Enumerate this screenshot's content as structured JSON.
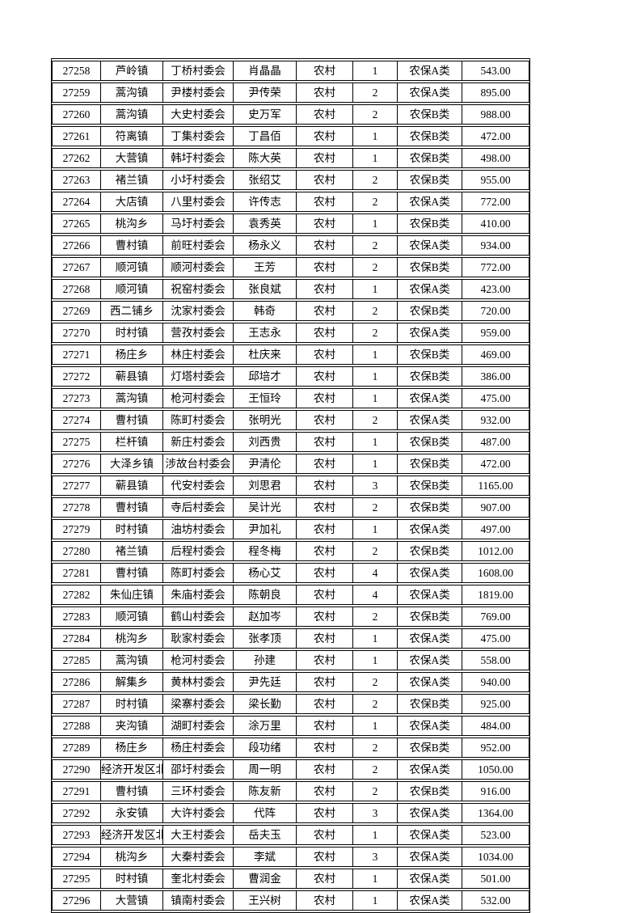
{
  "page": {
    "background_color": "#ffffff",
    "text_color": "#000000",
    "border_color": "#000000"
  },
  "table": {
    "rows": [
      [
        "27258",
        "芦岭镇",
        "丁桥村委会",
        "肖晶晶",
        "农村",
        "1",
        "农保A类",
        "543.00"
      ],
      [
        "27259",
        "蒿沟镇",
        "尹楼村委会",
        "尹传荣",
        "农村",
        "2",
        "农保A类",
        "895.00"
      ],
      [
        "27260",
        "蒿沟镇",
        "大史村委会",
        "史万军",
        "农村",
        "2",
        "农保B类",
        "988.00"
      ],
      [
        "27261",
        "符离镇",
        "丁集村委会",
        "丁昌佰",
        "农村",
        "1",
        "农保B类",
        "472.00"
      ],
      [
        "27262",
        "大营镇",
        "韩圩村委会",
        "陈大英",
        "农村",
        "1",
        "农保B类",
        "498.00"
      ],
      [
        "27263",
        "褚兰镇",
        "小圩村委会",
        "张绍艾",
        "农村",
        "2",
        "农保B类",
        "955.00"
      ],
      [
        "27264",
        "大店镇",
        "八里村委会",
        "许传志",
        "农村",
        "2",
        "农保A类",
        "772.00"
      ],
      [
        "27265",
        "桃沟乡",
        "马圩村委会",
        "袁秀英",
        "农村",
        "1",
        "农保B类",
        "410.00"
      ],
      [
        "27266",
        "曹村镇",
        "前旺村委会",
        "杨永义",
        "农村",
        "2",
        "农保A类",
        "934.00"
      ],
      [
        "27267",
        "顺河镇",
        "顺河村委会",
        "王芳",
        "农村",
        "2",
        "农保B类",
        "772.00"
      ],
      [
        "27268",
        "顺河镇",
        "祝窑村委会",
        "张良斌",
        "农村",
        "1",
        "农保A类",
        "423.00"
      ],
      [
        "27269",
        "西二铺乡",
        "沈家村委会",
        "韩奇",
        "农村",
        "2",
        "农保B类",
        "720.00"
      ],
      [
        "27270",
        "时村镇",
        "营孜村委会",
        "王志永",
        "农村",
        "2",
        "农保A类",
        "959.00"
      ],
      [
        "27271",
        "杨庄乡",
        "林庄村委会",
        "杜庆来",
        "农村",
        "1",
        "农保B类",
        "469.00"
      ],
      [
        "27272",
        "蕲县镇",
        "灯塔村委会",
        "邱培才",
        "农村",
        "1",
        "农保B类",
        "386.00"
      ],
      [
        "27273",
        "蒿沟镇",
        "枪河村委会",
        "王恒玲",
        "农村",
        "1",
        "农保A类",
        "475.00"
      ],
      [
        "27274",
        "曹村镇",
        "陈町村委会",
        "张明光",
        "农村",
        "2",
        "农保A类",
        "932.00"
      ],
      [
        "27275",
        "栏杆镇",
        "新庄村委会",
        "刘西贵",
        "农村",
        "1",
        "农保B类",
        "487.00"
      ],
      [
        "27276",
        "大泽乡镇",
        "涉故台村委会",
        "尹清伦",
        "农村",
        "1",
        "农保B类",
        "472.00"
      ],
      [
        "27277",
        "蕲县镇",
        "代安村委会",
        "刘思君",
        "农村",
        "3",
        "农保B类",
        "1165.00"
      ],
      [
        "27278",
        "曹村镇",
        "寺后村委会",
        "吴计光",
        "农村",
        "2",
        "农保B类",
        "907.00"
      ],
      [
        "27279",
        "时村镇",
        "油坊村委会",
        "尹加礼",
        "农村",
        "1",
        "农保A类",
        "497.00"
      ],
      [
        "27280",
        "褚兰镇",
        "后程村委会",
        "程冬梅",
        "农村",
        "2",
        "农保B类",
        "1012.00"
      ],
      [
        "27281",
        "曹村镇",
        "陈町村委会",
        "杨心艾",
        "农村",
        "4",
        "农保A类",
        "1608.00"
      ],
      [
        "27282",
        "朱仙庄镇",
        "朱庙村委会",
        "陈朝良",
        "农村",
        "4",
        "农保A类",
        "1819.00"
      ],
      [
        "27283",
        "顺河镇",
        "鹤山村委会",
        "赵加岑",
        "农村",
        "2",
        "农保B类",
        "769.00"
      ],
      [
        "27284",
        "桃沟乡",
        "耿家村委会",
        "张孝顶",
        "农村",
        "1",
        "农保A类",
        "475.00"
      ],
      [
        "27285",
        "蒿沟镇",
        "枪河村委会",
        "孙建",
        "农村",
        "1",
        "农保A类",
        "558.00"
      ],
      [
        "27286",
        "解集乡",
        "黄林村委会",
        "尹先廷",
        "农村",
        "2",
        "农保A类",
        "940.00"
      ],
      [
        "27287",
        "时村镇",
        "梁寨村委会",
        "梁长勤",
        "农村",
        "2",
        "农保B类",
        "925.00"
      ],
      [
        "27288",
        "夹沟镇",
        "湖町村委会",
        "涂万里",
        "农村",
        "1",
        "农保A类",
        "484.00"
      ],
      [
        "27289",
        "杨庄乡",
        "杨庄村委会",
        "段功绪",
        "农村",
        "2",
        "农保B类",
        "952.00"
      ],
      [
        "27290",
        "经济开发区北杨寨",
        "邵圩村委会",
        "周一明",
        "农村",
        "2",
        "农保A类",
        "1050.00"
      ],
      [
        "27291",
        "曹村镇",
        "三环村委会",
        "陈友新",
        "农村",
        "2",
        "农保B类",
        "916.00"
      ],
      [
        "27292",
        "永安镇",
        "大许村委会",
        "代阵",
        "农村",
        "3",
        "农保A类",
        "1364.00"
      ],
      [
        "27293",
        "经济开发区北杨寨",
        "大王村委会",
        "岳夫玉",
        "农村",
        "1",
        "农保A类",
        "523.00"
      ],
      [
        "27294",
        "桃沟乡",
        "大秦村委会",
        "李斌",
        "农村",
        "3",
        "农保A类",
        "1034.00"
      ],
      [
        "27295",
        "时村镇",
        "奎北村委会",
        "曹润金",
        "农村",
        "1",
        "农保A类",
        "501.00"
      ],
      [
        "27296",
        "大营镇",
        "镇南村委会",
        "王兴树",
        "农村",
        "1",
        "农保A类",
        "532.00"
      ]
    ]
  }
}
